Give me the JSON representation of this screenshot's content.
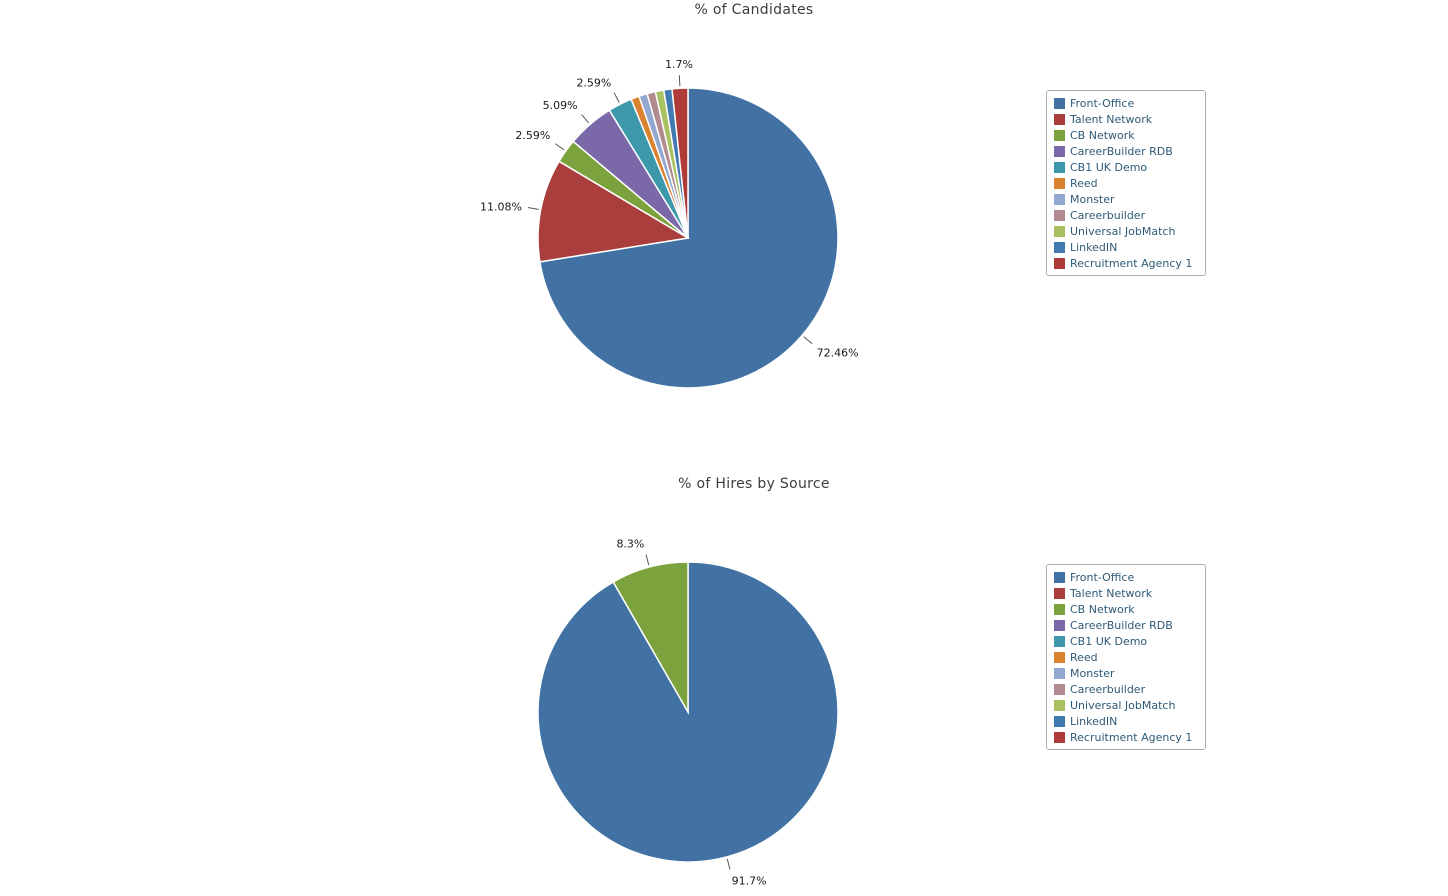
{
  "style": {
    "title_color": "#3d3d3d",
    "legend_text_color": "#2f5a77",
    "label_color": "#1a1a1a"
  },
  "chart_data": [
    {
      "type": "pie",
      "title": "% of Candidates",
      "legend_position": "right",
      "categories": [
        "Front-Office",
        "Talent Network",
        "CB Network",
        "CareerBuilder RDB",
        "CB1 UK Demo",
        "Reed",
        "Monster",
        "Careerbuilder",
        "Universal JobMatch",
        "LinkedIN",
        "Recruitment Agency 1"
      ],
      "colors": [
        "#4272a4",
        "#a93e3c",
        "#7ba23d",
        "#7a68a8",
        "#3d98ab",
        "#d9822f",
        "#92a8d1",
        "#b18b90",
        "#aac162",
        "#417ab1",
        "#af3b38"
      ],
      "values": [
        72.46,
        11.08,
        2.59,
        5.09,
        2.59,
        0.9,
        0.9,
        0.9,
        0.9,
        0.89,
        1.7
      ],
      "labels": [
        "72.46%",
        "11.08%",
        "2.59%",
        "5.09%",
        "2.59%",
        "",
        "",
        "",
        "",
        "",
        "1.7%"
      ]
    },
    {
      "type": "pie",
      "title": "% of Hires by Source",
      "legend_position": "right",
      "categories": [
        "Front-Office",
        "Talent Network",
        "CB Network",
        "CareerBuilder RDB",
        "CB1 UK Demo",
        "Reed",
        "Monster",
        "Careerbuilder",
        "Universal JobMatch",
        "LinkedIN",
        "Recruitment Agency 1"
      ],
      "colors": [
        "#4272a4",
        "#a93e3c",
        "#7ba23d",
        "#7a68a8",
        "#3d98ab",
        "#d9822f",
        "#92a8d1",
        "#b18b90",
        "#aac162",
        "#417ab1",
        "#af3b38"
      ],
      "values": [
        91.7,
        0,
        8.3,
        0,
        0,
        0,
        0,
        0,
        0,
        0,
        0
      ],
      "labels": [
        "91.7%",
        "",
        "8.3%",
        "",
        "",
        "",
        "",
        "",
        "",
        "",
        ""
      ]
    }
  ]
}
